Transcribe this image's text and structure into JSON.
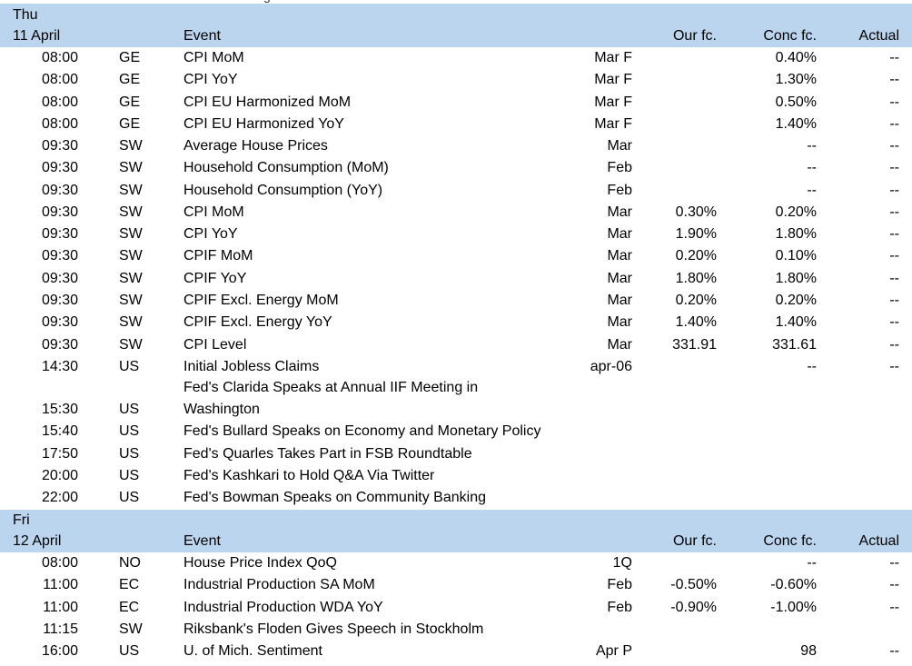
{
  "top_partial_text": "g",
  "sections": [
    {
      "day": "Thu",
      "date": "11 April",
      "headers": {
        "event": "Event",
        "our_fc": "Our fc.",
        "conc_fc": "Conc fc.",
        "actual": "Actual"
      },
      "rows": [
        {
          "time": "08:00",
          "country": "GE",
          "event": "CPI MoM",
          "period": "Mar F",
          "our": "",
          "conc": "0.40%",
          "actual": "--"
        },
        {
          "time": "08:00",
          "country": "GE",
          "event": "CPI YoY",
          "period": "Mar F",
          "our": "",
          "conc": "1.30%",
          "actual": "--"
        },
        {
          "time": "08:00",
          "country": "GE",
          "event": "CPI EU Harmonized MoM",
          "period": "Mar F",
          "our": "",
          "conc": "0.50%",
          "actual": "--"
        },
        {
          "time": "08:00",
          "country": "GE",
          "event": "CPI EU Harmonized YoY",
          "period": "Mar F",
          "our": "",
          "conc": "1.40%",
          "actual": "--"
        },
        {
          "time": "09:30",
          "country": "SW",
          "event": "Average House Prices",
          "period": "Mar",
          "our": "",
          "conc": "--",
          "actual": "--"
        },
        {
          "time": "09:30",
          "country": "SW",
          "event": "Household Consumption (MoM)",
          "period": "Feb",
          "our": "",
          "conc": "--",
          "actual": "--"
        },
        {
          "time": "09:30",
          "country": "SW",
          "event": "Household Consumption (YoY)",
          "period": "Feb",
          "our": "",
          "conc": "--",
          "actual": "--"
        },
        {
          "time": "09:30",
          "country": "SW",
          "event": "CPI MoM",
          "period": "Mar",
          "our": "0.30%",
          "conc": "0.20%",
          "actual": "--"
        },
        {
          "time": "09:30",
          "country": "SW",
          "event": "CPI YoY",
          "period": "Mar",
          "our": "1.90%",
          "conc": "1.80%",
          "actual": "--"
        },
        {
          "time": "09:30",
          "country": "SW",
          "event": "CPIF MoM",
          "period": "Mar",
          "our": "0.20%",
          "conc": "0.10%",
          "actual": "--"
        },
        {
          "time": "09:30",
          "country": "SW",
          "event": "CPIF YoY",
          "period": "Mar",
          "our": "1.80%",
          "conc": "1.80%",
          "actual": "--"
        },
        {
          "time": "09:30",
          "country": "SW",
          "event": "CPIF Excl. Energy MoM",
          "period": "Mar",
          "our": "0.20%",
          "conc": "0.20%",
          "actual": "--"
        },
        {
          "time": "09:30",
          "country": "SW",
          "event": "CPIF Excl. Energy YoY",
          "period": "Mar",
          "our": "1.40%",
          "conc": "1.40%",
          "actual": "--"
        },
        {
          "time": "09:30",
          "country": "SW",
          "event": "CPI Level",
          "period": "Mar",
          "our": "331.91",
          "conc": "331.61",
          "actual": "--"
        },
        {
          "time": "14:30",
          "country": "US",
          "event": "Initial Jobless Claims",
          "period": "apr-06",
          "our": "",
          "conc": "--",
          "actual": "--"
        },
        {
          "time": "15:30",
          "country": "US",
          "event_line1": "Fed's Clarida Speaks at Annual IIF Meeting in",
          "event_line2": "Washington",
          "period": "",
          "our": "",
          "conc": "",
          "actual": ""
        },
        {
          "time": "15:40",
          "country": "US",
          "event": "Fed's Bullard Speaks on Economy and Monetary Policy",
          "period": "",
          "our": "",
          "conc": "",
          "actual": ""
        },
        {
          "time": "17:50",
          "country": "US",
          "event": "Fed's Quarles Takes Part in FSB Roundtable",
          "period": "",
          "our": "",
          "conc": "",
          "actual": ""
        },
        {
          "time": "20:00",
          "country": "US",
          "event": "Fed's Kashkari to Hold Q&A Via Twitter",
          "period": "",
          "our": "",
          "conc": "",
          "actual": ""
        },
        {
          "time": "22:00",
          "country": "US",
          "event": "Fed's Bowman Speaks on Community Banking",
          "period": "",
          "our": "",
          "conc": "",
          "actual": ""
        }
      ]
    },
    {
      "day": "Fri",
      "date": "12 April",
      "headers": {
        "event": "Event",
        "our_fc": "Our fc.",
        "conc_fc": "Conc fc.",
        "actual": "Actual"
      },
      "rows": [
        {
          "time": "08:00",
          "country": "NO",
          "event": "House Price Index QoQ",
          "period": "1Q",
          "our": "",
          "conc": "--",
          "actual": "--"
        },
        {
          "time": "11:00",
          "country": "EC",
          "event": "Industrial Production SA MoM",
          "period": "Feb",
          "our": "-0.50%",
          "conc": "-0.60%",
          "actual": "--"
        },
        {
          "time": "11:00",
          "country": "EC",
          "event": "Industrial Production WDA YoY",
          "period": "Feb",
          "our": "-0.90%",
          "conc": "-1.00%",
          "actual": "--"
        },
        {
          "time": "11:15",
          "country": "SW",
          "event": "Riksbank's Floden Gives Speech in Stockholm",
          "period": "",
          "our": "",
          "conc": "",
          "actual": ""
        },
        {
          "time": "16:00",
          "country": "US",
          "event": "U. of Mich. Sentiment",
          "period": "Apr P",
          "our": "",
          "conc": "98",
          "actual": "--"
        }
      ]
    }
  ]
}
